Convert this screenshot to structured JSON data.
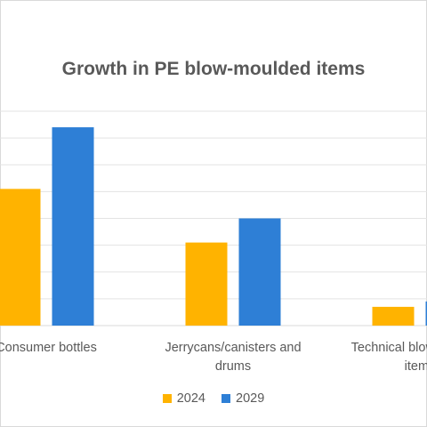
{
  "chart_data": {
    "type": "bar",
    "title": "Growth in PE blow-moulded items",
    "categories": [
      [
        "Consumer bottles"
      ],
      [
        "Jerrycans/canisters and",
        "drums"
      ],
      [
        "Technical blow-moulded",
        "items"
      ]
    ],
    "series": [
      {
        "name": "2024",
        "color": "#FFB300",
        "values": [
          5.1,
          3.1,
          0.7
        ]
      },
      {
        "name": "2029",
        "color": "#2E7FD6",
        "values": [
          7.4,
          4.0,
          0.9
        ]
      }
    ],
    "ylim": [
      0,
      8
    ],
    "grid": true,
    "legend": "bottom"
  }
}
